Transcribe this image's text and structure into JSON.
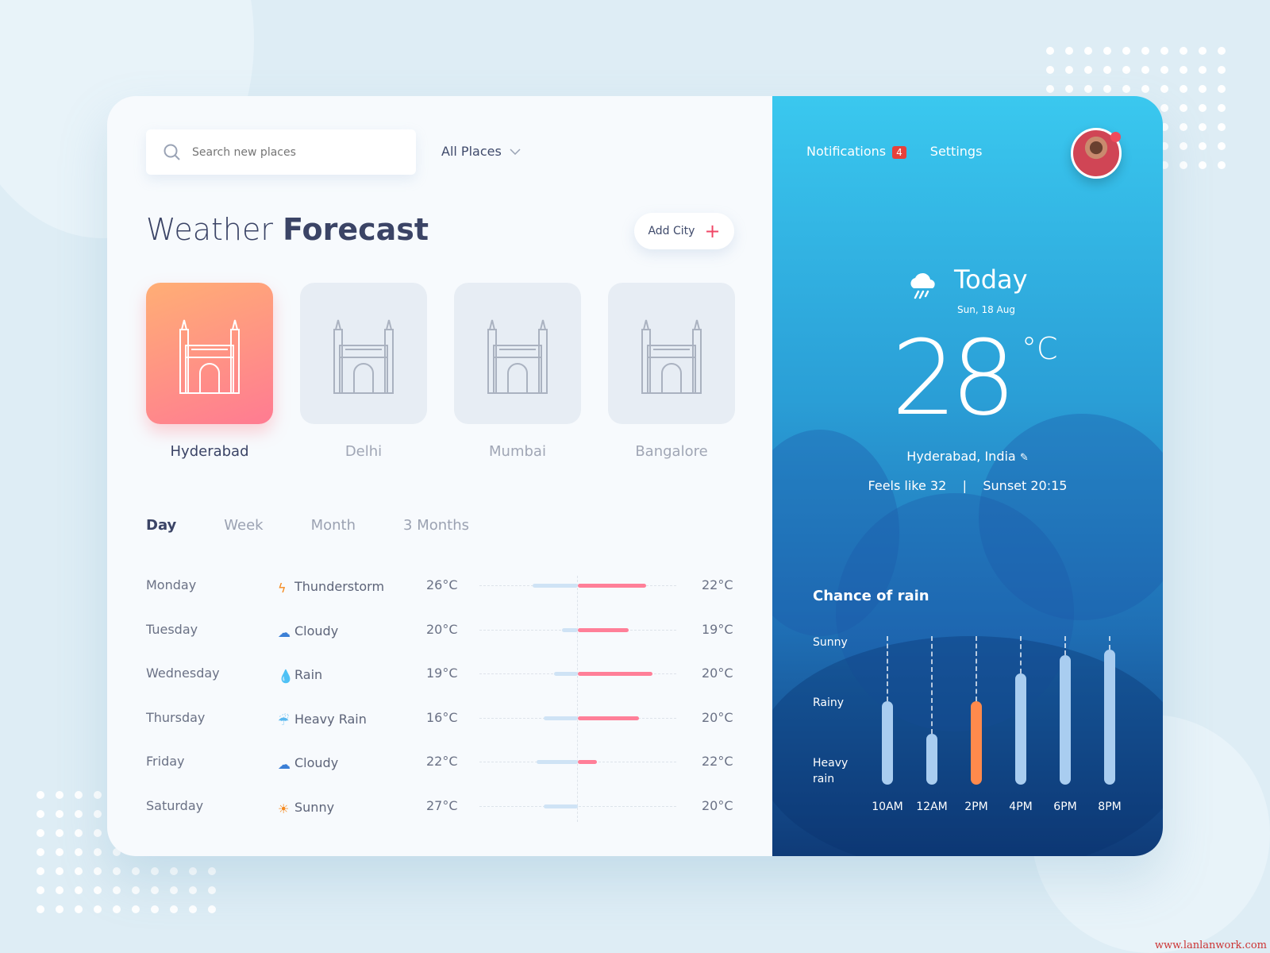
{
  "search": {
    "placeholder": "Search new places"
  },
  "filter": {
    "selected": "All Places"
  },
  "header": {
    "title_light": "Weather",
    "title_bold": "Forecast",
    "add_city": "Add City"
  },
  "cities": [
    {
      "name": "Hyderabad",
      "active": true
    },
    {
      "name": "Delhi",
      "active": false
    },
    {
      "name": "Mumbai",
      "active": false
    },
    {
      "name": "Bangalore",
      "active": false
    }
  ],
  "tabs": [
    "Day",
    "Week",
    "Month",
    "3 Months"
  ],
  "forecast": [
    {
      "day": "Monday",
      "icon": "lightning-icon",
      "condition": "Thunderstorm",
      "temp1": "26°C",
      "temp2": "22°C",
      "low_fraction": 0.46,
      "high_fraction": 0.69
    },
    {
      "day": "Tuesday",
      "icon": "cloud-icon",
      "condition": "Cloudy",
      "temp1": "20°C",
      "temp2": "19°C",
      "low_fraction": 0.16,
      "high_fraction": 0.52
    },
    {
      "day": "Wednesday",
      "icon": "raindrop-icon",
      "condition": "Rain",
      "temp1": "19°C",
      "temp2": "20°C",
      "low_fraction": 0.24,
      "high_fraction": 0.76
    },
    {
      "day": "Thursday",
      "icon": "heavy-rain-icon",
      "condition": "Heavy Rain",
      "temp1": "16°C",
      "temp2": "20°C",
      "low_fraction": 0.35,
      "high_fraction": 0.62
    },
    {
      "day": "Friday",
      "icon": "cloud-icon",
      "condition": "Cloudy",
      "temp1": "22°C",
      "temp2": "22°C",
      "low_fraction": 0.42,
      "high_fraction": 0.19
    },
    {
      "day": "Saturday",
      "icon": "sun-icon",
      "condition": "Sunny",
      "temp1": "27°C",
      "temp2": "20°C",
      "low_fraction": 0.35,
      "high_fraction": 0
    }
  ],
  "nav": {
    "notifications": "Notifications",
    "notification_count": "4",
    "settings": "Settings"
  },
  "today": {
    "label": "Today",
    "date": "Sun, 18 Aug",
    "temp": "28",
    "unit": "°C",
    "location": "Hyderabad, India",
    "feels_like": "Feels like 32",
    "separator": "|",
    "sunset": "Sunset 20:15"
  },
  "rain": {
    "title": "Chance of rain",
    "levels": [
      "Sunny",
      "Rainy",
      "Heavy rain"
    ],
    "times": [
      "10AM",
      "12AM",
      "2PM",
      "4PM",
      "6PM",
      "8PM"
    ],
    "values": [
      0.56,
      0.34,
      0.56,
      0.75,
      0.87,
      0.91
    ],
    "highlight_index": 2
  },
  "colors": {
    "accent": "#f04767",
    "cold_bar": "#cfe3f5",
    "warm_bar": "#ff7f98",
    "highlight": "#ff8a4c",
    "rain_bar": "#a9cdf0"
  },
  "watermark": "www.lanlanwork.com"
}
